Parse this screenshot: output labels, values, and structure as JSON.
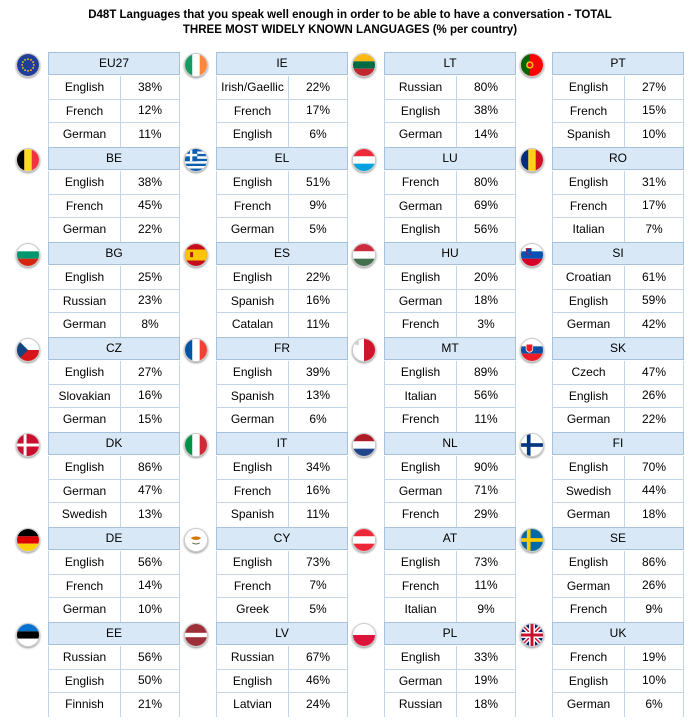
{
  "title": {
    "line1": "D48T Languages that you speak well enough in order to be able to have a conversation - TOTAL",
    "line2": "THREE MOST WIDELY KNOWN LANGUAGES (% per country)"
  },
  "chart_data": {
    "type": "table",
    "title": "D48T Languages that you speak well enough in order to be able to have a conversation - TOTAL THREE MOST WIDELY KNOWN LANGUAGES (% per country)",
    "countries": [
      {
        "code": "EU27",
        "flag": "eu-flag-icon",
        "languages": [
          {
            "name": "English",
            "value": "38%"
          },
          {
            "name": "French",
            "value": "12%"
          },
          {
            "name": "German",
            "value": "11%"
          }
        ]
      },
      {
        "code": "IE",
        "flag": "ireland-flag-icon",
        "languages": [
          {
            "name": "Irish/Gaellic",
            "value": "22%"
          },
          {
            "name": "French",
            "value": "17%"
          },
          {
            "name": "English",
            "value": "6%"
          }
        ]
      },
      {
        "code": "LT",
        "flag": "lithuania-flag-icon",
        "languages": [
          {
            "name": "Russian",
            "value": "80%"
          },
          {
            "name": "English",
            "value": "38%"
          },
          {
            "name": "German",
            "value": "14%"
          }
        ]
      },
      {
        "code": "PT",
        "flag": "portugal-flag-icon",
        "languages": [
          {
            "name": "English",
            "value": "27%"
          },
          {
            "name": "French",
            "value": "15%"
          },
          {
            "name": "Spanish",
            "value": "10%"
          }
        ]
      },
      {
        "code": "BE",
        "flag": "belgium-flag-icon",
        "languages": [
          {
            "name": "English",
            "value": "38%"
          },
          {
            "name": "French",
            "value": "45%"
          },
          {
            "name": "German",
            "value": "22%"
          }
        ]
      },
      {
        "code": "EL",
        "flag": "greece-flag-icon",
        "languages": [
          {
            "name": "English",
            "value": "51%"
          },
          {
            "name": "French",
            "value": "9%"
          },
          {
            "name": "German",
            "value": "5%"
          }
        ]
      },
      {
        "code": "LU",
        "flag": "luxembourg-flag-icon",
        "languages": [
          {
            "name": "French",
            "value": "80%"
          },
          {
            "name": "German",
            "value": "69%"
          },
          {
            "name": "English",
            "value": "56%"
          }
        ]
      },
      {
        "code": "RO",
        "flag": "romania-flag-icon",
        "languages": [
          {
            "name": "English",
            "value": "31%"
          },
          {
            "name": "French",
            "value": "17%"
          },
          {
            "name": "Italian",
            "value": "7%"
          }
        ]
      },
      {
        "code": "BG",
        "flag": "bulgaria-flag-icon",
        "languages": [
          {
            "name": "English",
            "value": "25%"
          },
          {
            "name": "Russian",
            "value": "23%"
          },
          {
            "name": "German",
            "value": "8%"
          }
        ]
      },
      {
        "code": "ES",
        "flag": "spain-flag-icon",
        "languages": [
          {
            "name": "English",
            "value": "22%"
          },
          {
            "name": "Spanish",
            "value": "16%"
          },
          {
            "name": "Catalan",
            "value": "11%"
          }
        ]
      },
      {
        "code": "HU",
        "flag": "hungary-flag-icon",
        "languages": [
          {
            "name": "English",
            "value": "20%"
          },
          {
            "name": "German",
            "value": "18%"
          },
          {
            "name": "French",
            "value": "3%"
          }
        ]
      },
      {
        "code": "SI",
        "flag": "slovenia-flag-icon",
        "languages": [
          {
            "name": "Croatian",
            "value": "61%"
          },
          {
            "name": "English",
            "value": "59%"
          },
          {
            "name": "German",
            "value": "42%"
          }
        ]
      },
      {
        "code": "CZ",
        "flag": "czech-flag-icon",
        "languages": [
          {
            "name": "English",
            "value": "27%"
          },
          {
            "name": "Slovakian",
            "value": "16%"
          },
          {
            "name": "German",
            "value": "15%"
          }
        ]
      },
      {
        "code": "FR",
        "flag": "france-flag-icon",
        "languages": [
          {
            "name": "English",
            "value": "39%"
          },
          {
            "name": "Spanish",
            "value": "13%"
          },
          {
            "name": "German",
            "value": "6%"
          }
        ]
      },
      {
        "code": "MT",
        "flag": "malta-flag-icon",
        "languages": [
          {
            "name": "English",
            "value": "89%"
          },
          {
            "name": "Italian",
            "value": "56%"
          },
          {
            "name": "French",
            "value": "11%"
          }
        ]
      },
      {
        "code": "SK",
        "flag": "slovakia-flag-icon",
        "languages": [
          {
            "name": "Czech",
            "value": "47%"
          },
          {
            "name": "English",
            "value": "26%"
          },
          {
            "name": "German",
            "value": "22%"
          }
        ]
      },
      {
        "code": "DK",
        "flag": "denmark-flag-icon",
        "languages": [
          {
            "name": "English",
            "value": "86%"
          },
          {
            "name": "German",
            "value": "47%"
          },
          {
            "name": "Swedish",
            "value": "13%"
          }
        ]
      },
      {
        "code": "IT",
        "flag": "italy-flag-icon",
        "languages": [
          {
            "name": "English",
            "value": "34%"
          },
          {
            "name": "French",
            "value": "16%"
          },
          {
            "name": "Spanish",
            "value": "11%"
          }
        ]
      },
      {
        "code": "NL",
        "flag": "netherlands-flag-icon",
        "languages": [
          {
            "name": "English",
            "value": "90%"
          },
          {
            "name": "German",
            "value": "71%"
          },
          {
            "name": "French",
            "value": "29%"
          }
        ]
      },
      {
        "code": "FI",
        "flag": "finland-flag-icon",
        "languages": [
          {
            "name": "English",
            "value": "70%"
          },
          {
            "name": "Swedish",
            "value": "44%"
          },
          {
            "name": "German",
            "value": "18%"
          }
        ]
      },
      {
        "code": "DE",
        "flag": "germany-flag-icon",
        "languages": [
          {
            "name": "English",
            "value": "56%"
          },
          {
            "name": "French",
            "value": "14%"
          },
          {
            "name": "German",
            "value": "10%"
          }
        ]
      },
      {
        "code": "CY",
        "flag": "cyprus-flag-icon",
        "languages": [
          {
            "name": "English",
            "value": "73%"
          },
          {
            "name": "French",
            "value": "7%"
          },
          {
            "name": "Greek",
            "value": "5%"
          }
        ]
      },
      {
        "code": "AT",
        "flag": "austria-flag-icon",
        "languages": [
          {
            "name": "English",
            "value": "73%"
          },
          {
            "name": "French",
            "value": "11%"
          },
          {
            "name": "Italian",
            "value": "9%"
          }
        ]
      },
      {
        "code": "SE",
        "flag": "sweden-flag-icon",
        "languages": [
          {
            "name": "English",
            "value": "86%"
          },
          {
            "name": "German",
            "value": "26%"
          },
          {
            "name": "French",
            "value": "9%"
          }
        ]
      },
      {
        "code": "EE",
        "flag": "estonia-flag-icon",
        "languages": [
          {
            "name": "Russian",
            "value": "56%"
          },
          {
            "name": "English",
            "value": "50%"
          },
          {
            "name": "Finnish",
            "value": "21%"
          }
        ]
      },
      {
        "code": "LV",
        "flag": "latvia-flag-icon",
        "languages": [
          {
            "name": "Russian",
            "value": "67%"
          },
          {
            "name": "English",
            "value": "46%"
          },
          {
            "name": "Latvian",
            "value": "24%"
          }
        ]
      },
      {
        "code": "PL",
        "flag": "poland-flag-icon",
        "languages": [
          {
            "name": "English",
            "value": "33%"
          },
          {
            "name": "German",
            "value": "19%"
          },
          {
            "name": "Russian",
            "value": "18%"
          }
        ]
      },
      {
        "code": "UK",
        "flag": "uk-flag-icon",
        "languages": [
          {
            "name": "French",
            "value": "19%"
          },
          {
            "name": "English",
            "value": "10%"
          },
          {
            "name": "German",
            "value": "6%"
          }
        ]
      }
    ]
  }
}
